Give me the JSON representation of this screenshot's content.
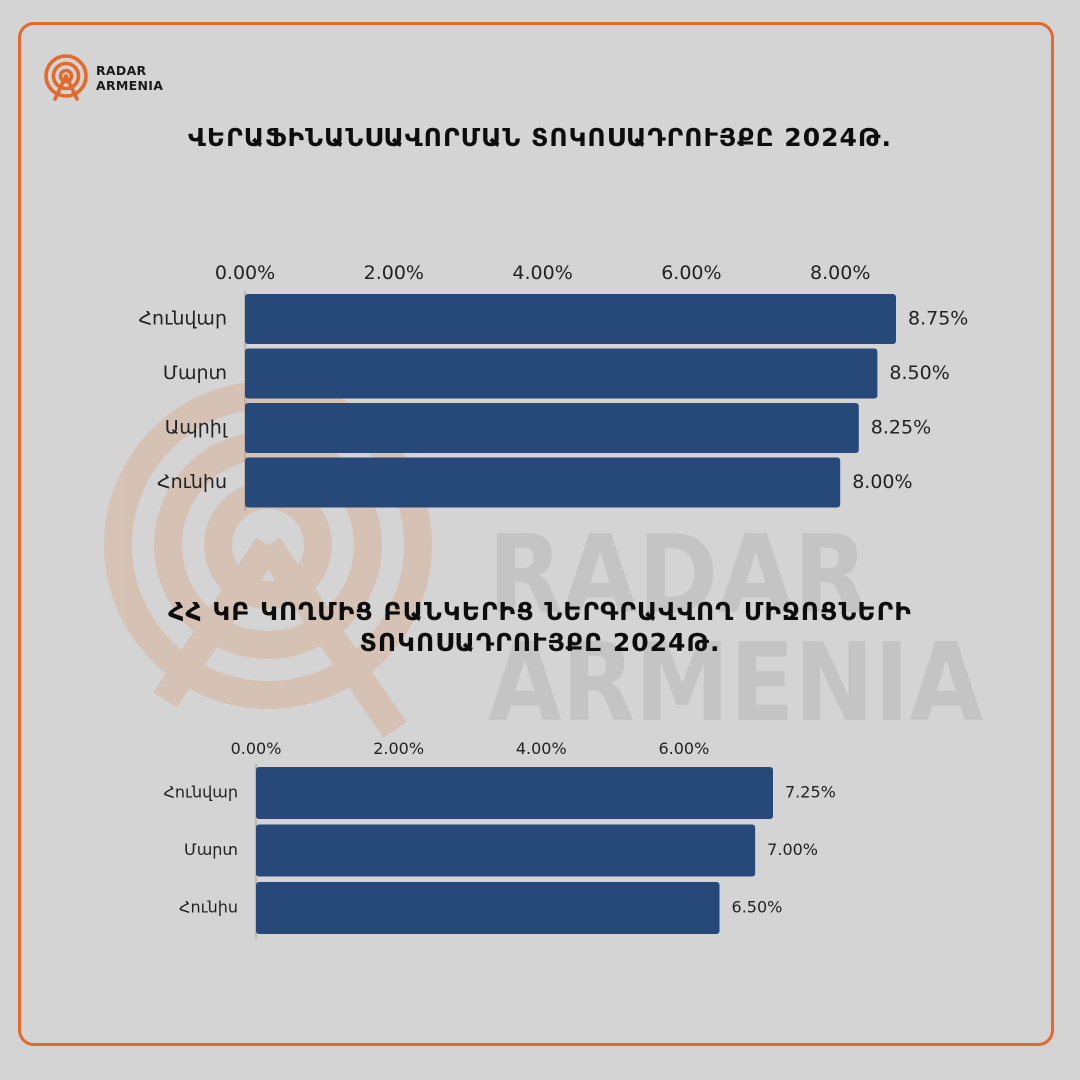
{
  "brand": {
    "name_line1": "RADAR",
    "name_line2": "ARMENIA",
    "accent_color": "#e36a2a",
    "icon": "radar-antenna-icon"
  },
  "watermark": {
    "line1": "RADAR",
    "line2": "ARMENIA"
  },
  "colors": {
    "bar": "#27497a",
    "background": "#d4d4d4",
    "frame": "#e36a2a"
  },
  "chart_data": [
    {
      "type": "bar",
      "orientation": "horizontal",
      "title": "ՎԵՐԱՖԻՆԱՆՍԱՎՈՐՄԱՆ ՏՈԿՈՍԱԴՐՈՒՅՔԸ 2024Թ.",
      "categories": [
        "Հունվար",
        "Մարտ",
        "Ապրիլ",
        "Հունիս"
      ],
      "values": [
        8.75,
        8.5,
        8.25,
        8.0
      ],
      "value_labels": [
        "8.75%",
        "8.50%",
        "8.25%",
        "8.00%"
      ],
      "ticks": [
        0,
        2,
        4,
        6,
        8
      ],
      "tick_labels": [
        "0.00%",
        "2.00%",
        "4.00%",
        "6.00%",
        "8.00%"
      ],
      "xlim": [
        0,
        8.75
      ],
      "xaxis_position": "top",
      "grid": false,
      "legend": "none"
    },
    {
      "type": "bar",
      "orientation": "horizontal",
      "title": "ՀՀ ԿԲ ԿՈՂՄԻՑ ԲԱՆԿԵՐԻՑ ՆԵՐԳՐԱՎՎՈՂ ՄԻՋՈՑՆԵՐԻ ՏՈԿՈՍԱԴՐՈՒՅՔԸ 2024Թ.",
      "title_line1": "ՀՀ ԿԲ ԿՈՂՄԻՑ ԲԱՆԿԵՐԻՑ ՆԵՐԳՐԱՎՎՈՂ ՄԻՋՈՑՆԵՐԻ",
      "title_line2": "ՏՈԿՈՍԱԴՐՈՒՅՔԸ 2024Թ.",
      "categories": [
        "Հունվար",
        "Մարտ",
        "Հունիս"
      ],
      "values": [
        7.25,
        7.0,
        6.5
      ],
      "value_labels": [
        "7.25%",
        "7.00%",
        "6.50%"
      ],
      "ticks": [
        0,
        2,
        4,
        6
      ],
      "tick_labels": [
        "0.00%",
        "2.00%",
        "4.00%",
        "6.00%"
      ],
      "xlim": [
        0,
        7.25
      ],
      "xaxis_position": "top",
      "grid": false,
      "legend": "none"
    }
  ]
}
